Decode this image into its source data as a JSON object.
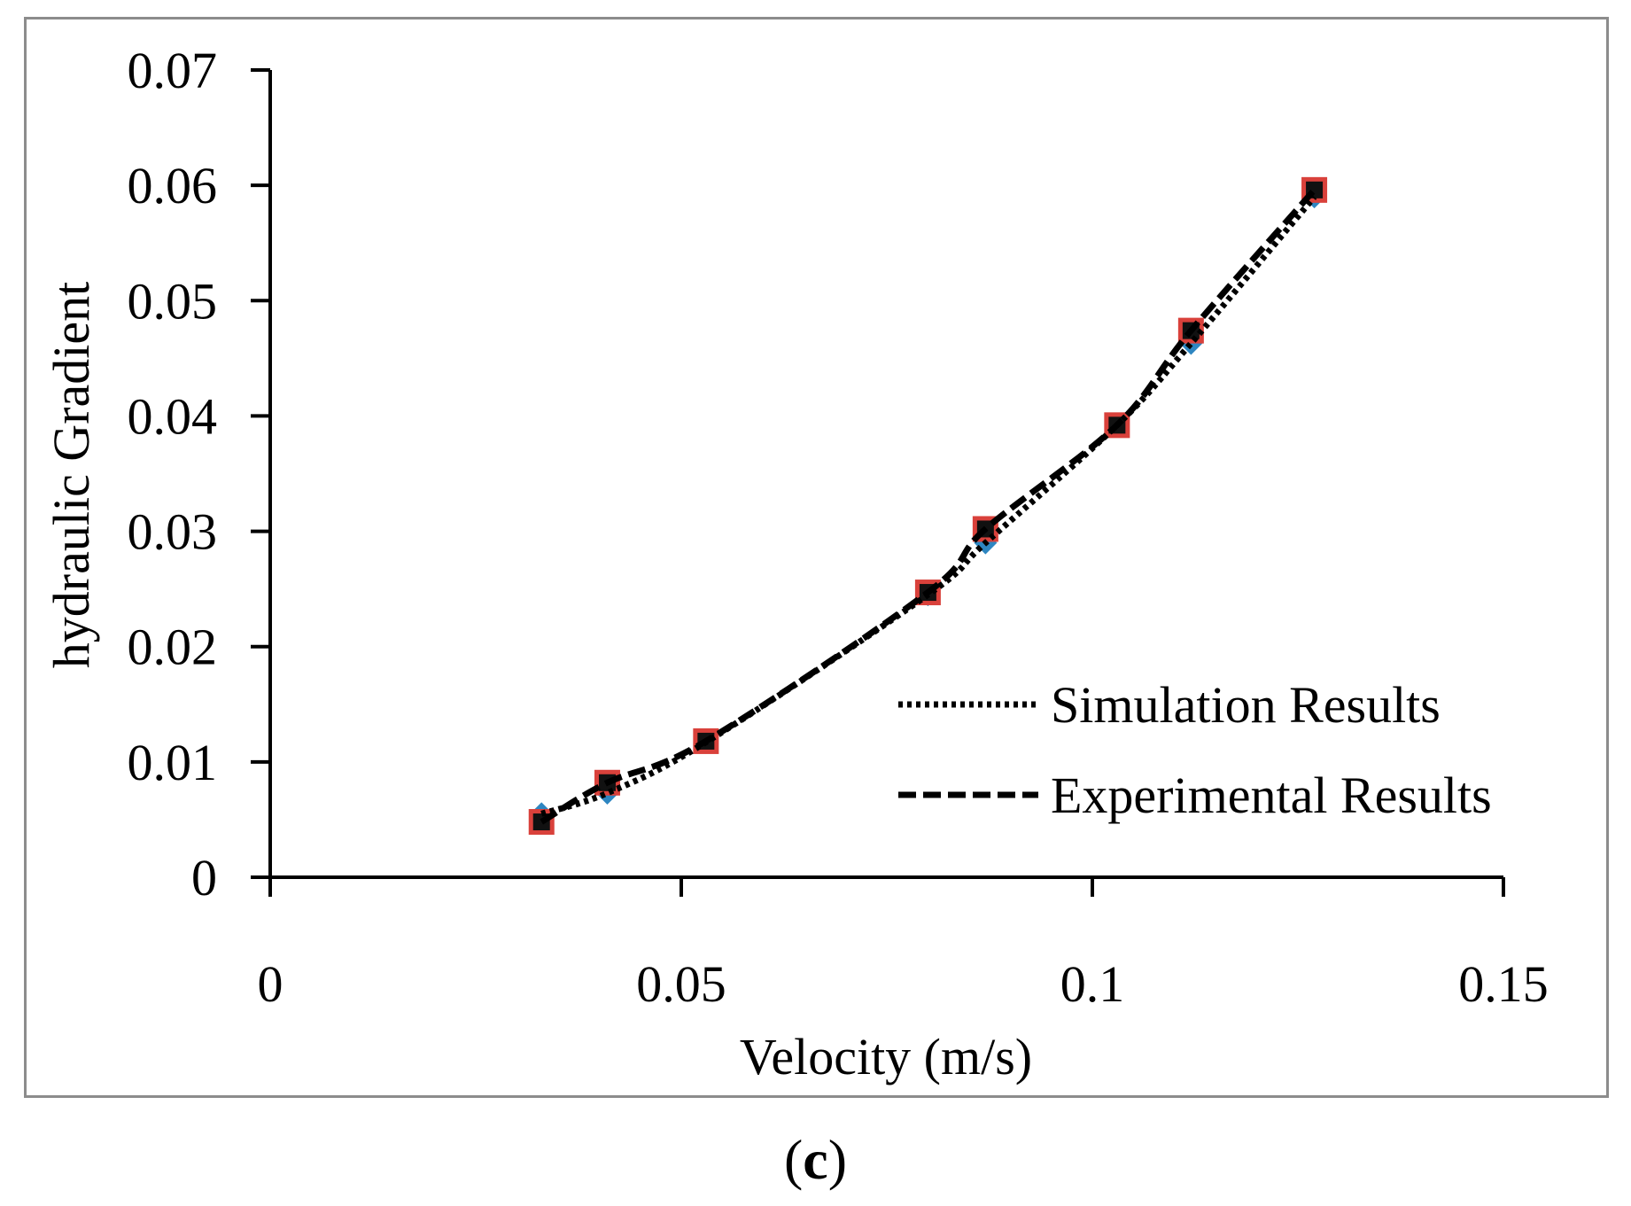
{
  "chart_data": {
    "type": "line",
    "title": "",
    "xlabel": "Velocity (m/s)",
    "ylabel": "hydraulic Gradient",
    "xlim": [
      0,
      0.15
    ],
    "ylim": [
      0,
      0.07
    ],
    "xticks": [
      0,
      0.05,
      0.1,
      0.15
    ],
    "xtick_labels": [
      "0",
      "0.05",
      "0.1",
      "0.15"
    ],
    "yticks": [
      0,
      0.01,
      0.02,
      0.03,
      0.04,
      0.05,
      0.06,
      0.07
    ],
    "ytick_labels": [
      "0",
      "0.01",
      "0.02",
      "0.03",
      "0.04",
      "0.05",
      "0.06",
      "0.07"
    ],
    "grid": false,
    "legend_position": "bottom-right",
    "series": [
      {
        "name": "Simulation Results",
        "line_style": "dotted",
        "marker": "diamond",
        "marker_color": "#2e86c1",
        "x": [
          0.033,
          0.041,
          0.053,
          0.08,
          0.087,
          0.103,
          0.112,
          0.127
        ],
        "y": [
          0.0055,
          0.0073,
          0.0117,
          0.0245,
          0.029,
          0.0392,
          0.0463,
          0.059
        ]
      },
      {
        "name": "Experimental Results",
        "line_style": "dashed",
        "marker": "square",
        "marker_color": "#d9413b",
        "x": [
          0.033,
          0.041,
          0.053,
          0.08,
          0.087,
          0.103,
          0.112,
          0.127
        ],
        "y": [
          0.0048,
          0.0082,
          0.0118,
          0.0247,
          0.0302,
          0.0392,
          0.0474,
          0.0596
        ]
      }
    ]
  },
  "panel_label": "c",
  "panel_label_open": "(",
  "panel_label_close": ")"
}
